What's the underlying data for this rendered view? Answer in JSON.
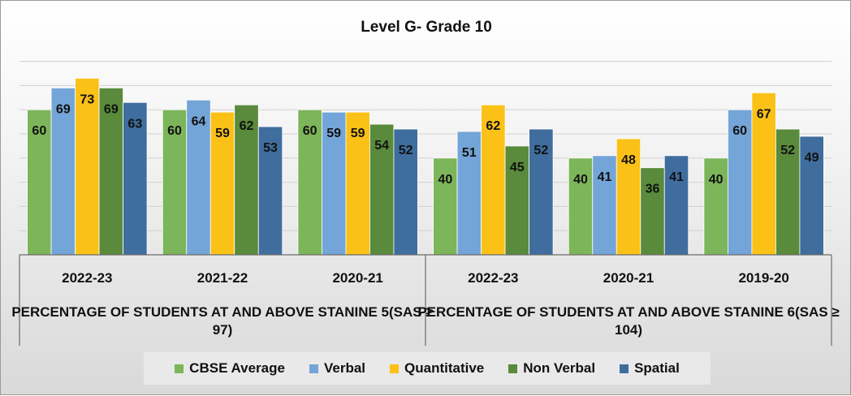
{
  "chart_data": {
    "type": "bar",
    "title": "Level G- Grade 10",
    "categories": [
      "2022-23",
      "2021-22",
      "2020-21",
      "2022-23",
      "2020-21",
      "2019-20"
    ],
    "groups": [
      {
        "label": "PERCENTAGE OF STUDENTS AT AND ABOVE STANINE 5(SAS ≥ 97)",
        "categories": [
          0,
          1,
          2
        ]
      },
      {
        "label": "PERCENTAGE OF STUDENTS AT AND ABOVE STANINE 6(SAS ≥ 104)",
        "categories": [
          3,
          4,
          5
        ]
      }
    ],
    "series": [
      {
        "name": "CBSE Average",
        "color": "#7db55a",
        "values": [
          60,
          60,
          60,
          40,
          40,
          40
        ]
      },
      {
        "name": "Verbal",
        "color": "#74a5d8",
        "values": [
          69,
          64,
          59,
          51,
          41,
          60
        ]
      },
      {
        "name": "Quantitative",
        "color": "#fbc117",
        "values": [
          73,
          59,
          59,
          62,
          48,
          67
        ]
      },
      {
        "name": "Non Verbal",
        "color": "#5a8a3b",
        "values": [
          69,
          62,
          54,
          45,
          36,
          52
        ]
      },
      {
        "name": "Spatial",
        "color": "#3f6d9e",
        "values": [
          63,
          53,
          52,
          52,
          41,
          49
        ]
      }
    ],
    "ylim": [
      0,
      80
    ],
    "grid": true,
    "legend": "bottom"
  }
}
